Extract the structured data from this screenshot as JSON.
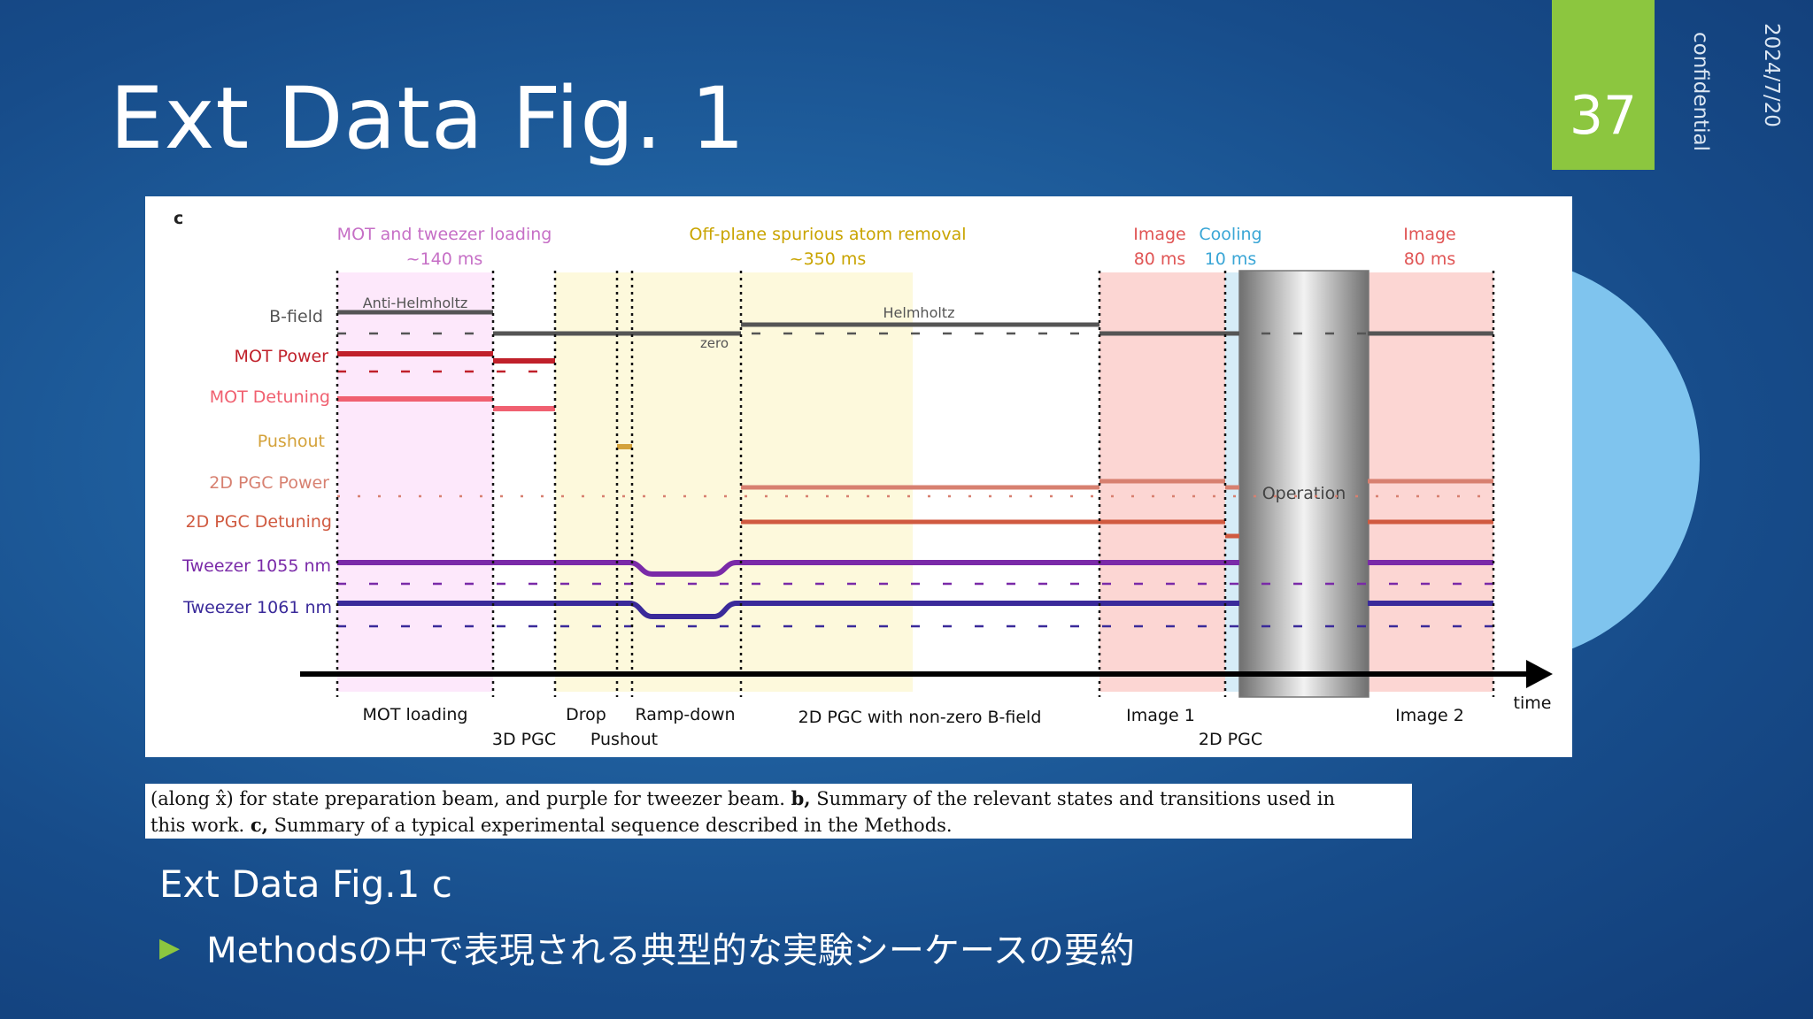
{
  "slide": {
    "title": "Ext Data Fig. 1",
    "page_number": "37",
    "date": "2024/7/20",
    "confidential": "confidential",
    "subtitle": "Ext Data Fig.1 c",
    "bullet": "Methodsの中で表現される典型的な実験シーケースの要約"
  },
  "caption": {
    "line1_pre": "(along x̂) for state preparation beam, and purple for tweezer beam. ",
    "line1_bold": "b,",
    "line1_post": " Summary of the relevant states and transitions used in",
    "line2_pre": "this work. ",
    "line2_bold": "c,",
    "line2_post": " Summary of a typical experimental sequence described in the Methods."
  },
  "figure": {
    "panel_label": "c",
    "headers": [
      {
        "line1": "MOT and tweezer loading",
        "line2": "~140 ms",
        "color": "#c66fc6"
      },
      {
        "line1": "Off-plane spurious atom removal",
        "line2": "~350 ms",
        "color": "#c9a400"
      },
      {
        "line1": "Image",
        "line2": "80 ms",
        "color": "#e05555"
      },
      {
        "line1": "Cooling",
        "line2": "10 ms",
        "color": "#3aa6d6"
      },
      {
        "line1": "Image",
        "line2": "80 ms",
        "color": "#e05555"
      }
    ],
    "rows": [
      {
        "label": "B-field",
        "color": "#555555"
      },
      {
        "label": "MOT Power",
        "color": "#c0202a"
      },
      {
        "label": "MOT Detuning",
        "color": "#f06070"
      },
      {
        "label": "Pushout",
        "color": "#d4a23a"
      },
      {
        "label": "2D PGC Power",
        "color": "#d78070"
      },
      {
        "label": "2D PGC Detuning",
        "color": "#d05a40"
      },
      {
        "label": "Tweezer 1055 nm",
        "color": "#7a2aa8"
      },
      {
        "label": "Tweezer 1061 nm",
        "color": "#3a2a9a"
      }
    ],
    "annotations": {
      "anti_helmholtz": "Anti-Helmholtz",
      "helmholtz": "Helmholtz",
      "zero": "zero",
      "operation": "Operation",
      "time": "time"
    },
    "phases_top": [
      "MOT loading",
      "Drop",
      "Ramp-down",
      "2D PGC with non-zero B-field",
      "Image 1",
      "Image 2"
    ],
    "phases_bottom": [
      "3D PGC",
      "Pushout",
      "2D PGC"
    ],
    "colors": {
      "mot_region": "#fde8fb",
      "removal_region": "#fdf9dc",
      "image_region": "#fcd6d3",
      "cooling_region": "#d6ecf7",
      "operation_gray": "#9a9a9a"
    }
  }
}
